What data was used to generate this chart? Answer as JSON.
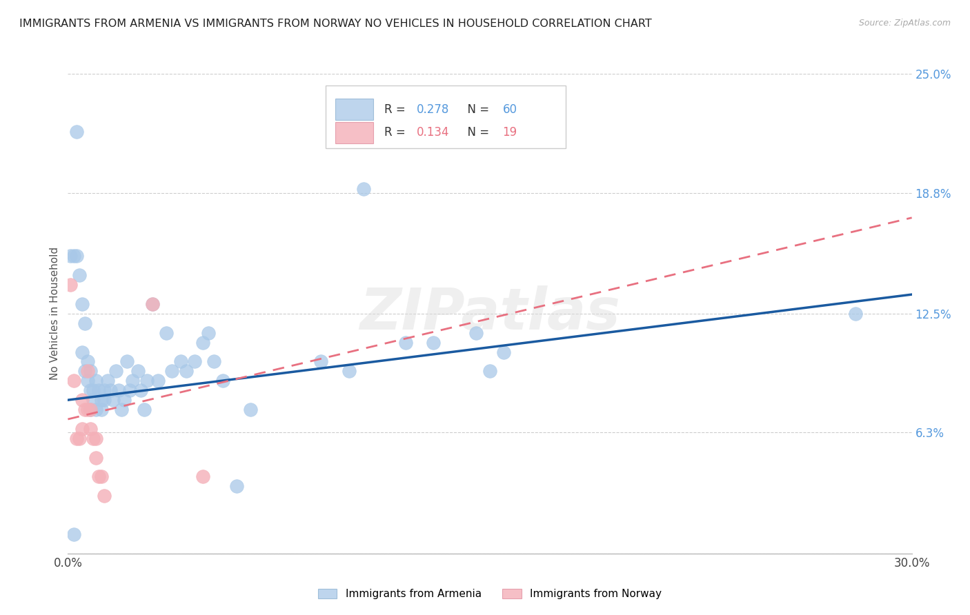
{
  "title": "IMMIGRANTS FROM ARMENIA VS IMMIGRANTS FROM NORWAY NO VEHICLES IN HOUSEHOLD CORRELATION CHART",
  "source": "Source: ZipAtlas.com",
  "ylabel": "No Vehicles in Household",
  "xlim": [
    0.0,
    0.3
  ],
  "ylim": [
    0.0,
    0.25
  ],
  "xticks": [
    0.0,
    0.05,
    0.1,
    0.15,
    0.2,
    0.25,
    0.3
  ],
  "xticklabels": [
    "0.0%",
    "",
    "",
    "",
    "",
    "",
    "30.0%"
  ],
  "yticks_right": [
    0.0,
    0.063,
    0.125,
    0.188,
    0.25
  ],
  "yticks_right_labels": [
    "",
    "6.3%",
    "12.5%",
    "18.8%",
    "25.0%"
  ],
  "R_armenia": 0.278,
  "N_armenia": 60,
  "R_norway": 0.134,
  "N_norway": 19,
  "armenia_color": "#a8c8e8",
  "norway_color": "#f4b0b8",
  "armenia_line_color": "#1a5aa0",
  "norway_line_color": "#e87080",
  "watermark": "ZIPatlas",
  "armenia_trend_start": 0.08,
  "armenia_trend_end": 0.135,
  "norway_trend_start": 0.07,
  "norway_trend_end": 0.175,
  "armenia_scatter": [
    [
      0.001,
      0.155
    ],
    [
      0.002,
      0.155
    ],
    [
      0.003,
      0.22
    ],
    [
      0.003,
      0.155
    ],
    [
      0.004,
      0.145
    ],
    [
      0.005,
      0.13
    ],
    [
      0.005,
      0.105
    ],
    [
      0.006,
      0.12
    ],
    [
      0.006,
      0.095
    ],
    [
      0.007,
      0.1
    ],
    [
      0.007,
      0.09
    ],
    [
      0.008,
      0.095
    ],
    [
      0.008,
      0.085
    ],
    [
      0.008,
      0.075
    ],
    [
      0.009,
      0.085
    ],
    [
      0.009,
      0.08
    ],
    [
      0.01,
      0.09
    ],
    [
      0.01,
      0.075
    ],
    [
      0.011,
      0.085
    ],
    [
      0.012,
      0.08
    ],
    [
      0.012,
      0.075
    ],
    [
      0.013,
      0.085
    ],
    [
      0.013,
      0.08
    ],
    [
      0.014,
      0.09
    ],
    [
      0.015,
      0.085
    ],
    [
      0.016,
      0.08
    ],
    [
      0.017,
      0.095
    ],
    [
      0.018,
      0.085
    ],
    [
      0.019,
      0.075
    ],
    [
      0.02,
      0.08
    ],
    [
      0.021,
      0.1
    ],
    [
      0.022,
      0.085
    ],
    [
      0.023,
      0.09
    ],
    [
      0.025,
      0.095
    ],
    [
      0.026,
      0.085
    ],
    [
      0.027,
      0.075
    ],
    [
      0.028,
      0.09
    ],
    [
      0.03,
      0.13
    ],
    [
      0.032,
      0.09
    ],
    [
      0.035,
      0.115
    ],
    [
      0.037,
      0.095
    ],
    [
      0.04,
      0.1
    ],
    [
      0.042,
      0.095
    ],
    [
      0.045,
      0.1
    ],
    [
      0.048,
      0.11
    ],
    [
      0.05,
      0.115
    ],
    [
      0.052,
      0.1
    ],
    [
      0.055,
      0.09
    ],
    [
      0.06,
      0.035
    ],
    [
      0.065,
      0.075
    ],
    [
      0.09,
      0.1
    ],
    [
      0.1,
      0.095
    ],
    [
      0.105,
      0.19
    ],
    [
      0.12,
      0.11
    ],
    [
      0.13,
      0.11
    ],
    [
      0.145,
      0.115
    ],
    [
      0.15,
      0.095
    ],
    [
      0.155,
      0.105
    ],
    [
      0.28,
      0.125
    ],
    [
      0.002,
      0.01
    ]
  ],
  "norway_scatter": [
    [
      0.001,
      0.14
    ],
    [
      0.002,
      0.09
    ],
    [
      0.003,
      0.06
    ],
    [
      0.004,
      0.06
    ],
    [
      0.005,
      0.065
    ],
    [
      0.005,
      0.08
    ],
    [
      0.006,
      0.075
    ],
    [
      0.007,
      0.095
    ],
    [
      0.007,
      0.075
    ],
    [
      0.008,
      0.075
    ],
    [
      0.008,
      0.065
    ],
    [
      0.009,
      0.06
    ],
    [
      0.01,
      0.06
    ],
    [
      0.01,
      0.05
    ],
    [
      0.011,
      0.04
    ],
    [
      0.012,
      0.04
    ],
    [
      0.013,
      0.03
    ],
    [
      0.03,
      0.13
    ],
    [
      0.048,
      0.04
    ]
  ]
}
